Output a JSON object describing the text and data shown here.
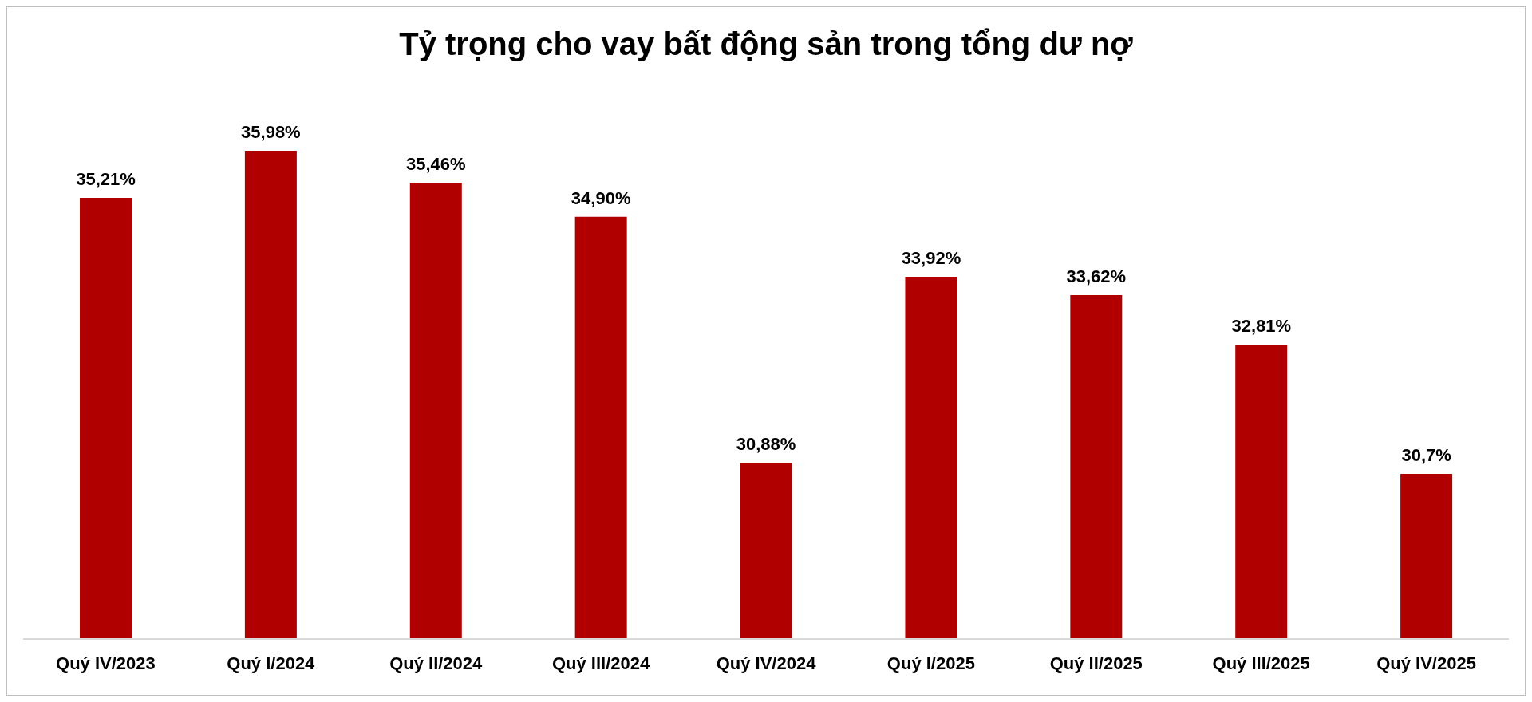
{
  "chart_data": {
    "type": "bar",
    "title": "Tỷ trọng cho vay bất động sản trong tổng dư nợ",
    "categories": [
      "Quý IV/2023",
      "Quý I/2024",
      "Quý II/2024",
      "Quý III/2024",
      "Quý IV/2024",
      "Quý I/2025",
      "Quý II/2025",
      "Quý III/2025",
      "Quý IV/2025"
    ],
    "values": [
      35.21,
      35.98,
      35.46,
      34.9,
      30.88,
      33.92,
      33.62,
      32.81,
      30.7
    ],
    "value_labels": [
      "35,21%",
      "35,98%",
      "35,46%",
      "34,90%",
      "30,88%",
      "33,92%",
      "33,62%",
      "32,81%",
      "30,7%"
    ],
    "color": "#b00000",
    "ylim": [
      28,
      35.98
    ],
    "grid": false,
    "legend": false
  }
}
